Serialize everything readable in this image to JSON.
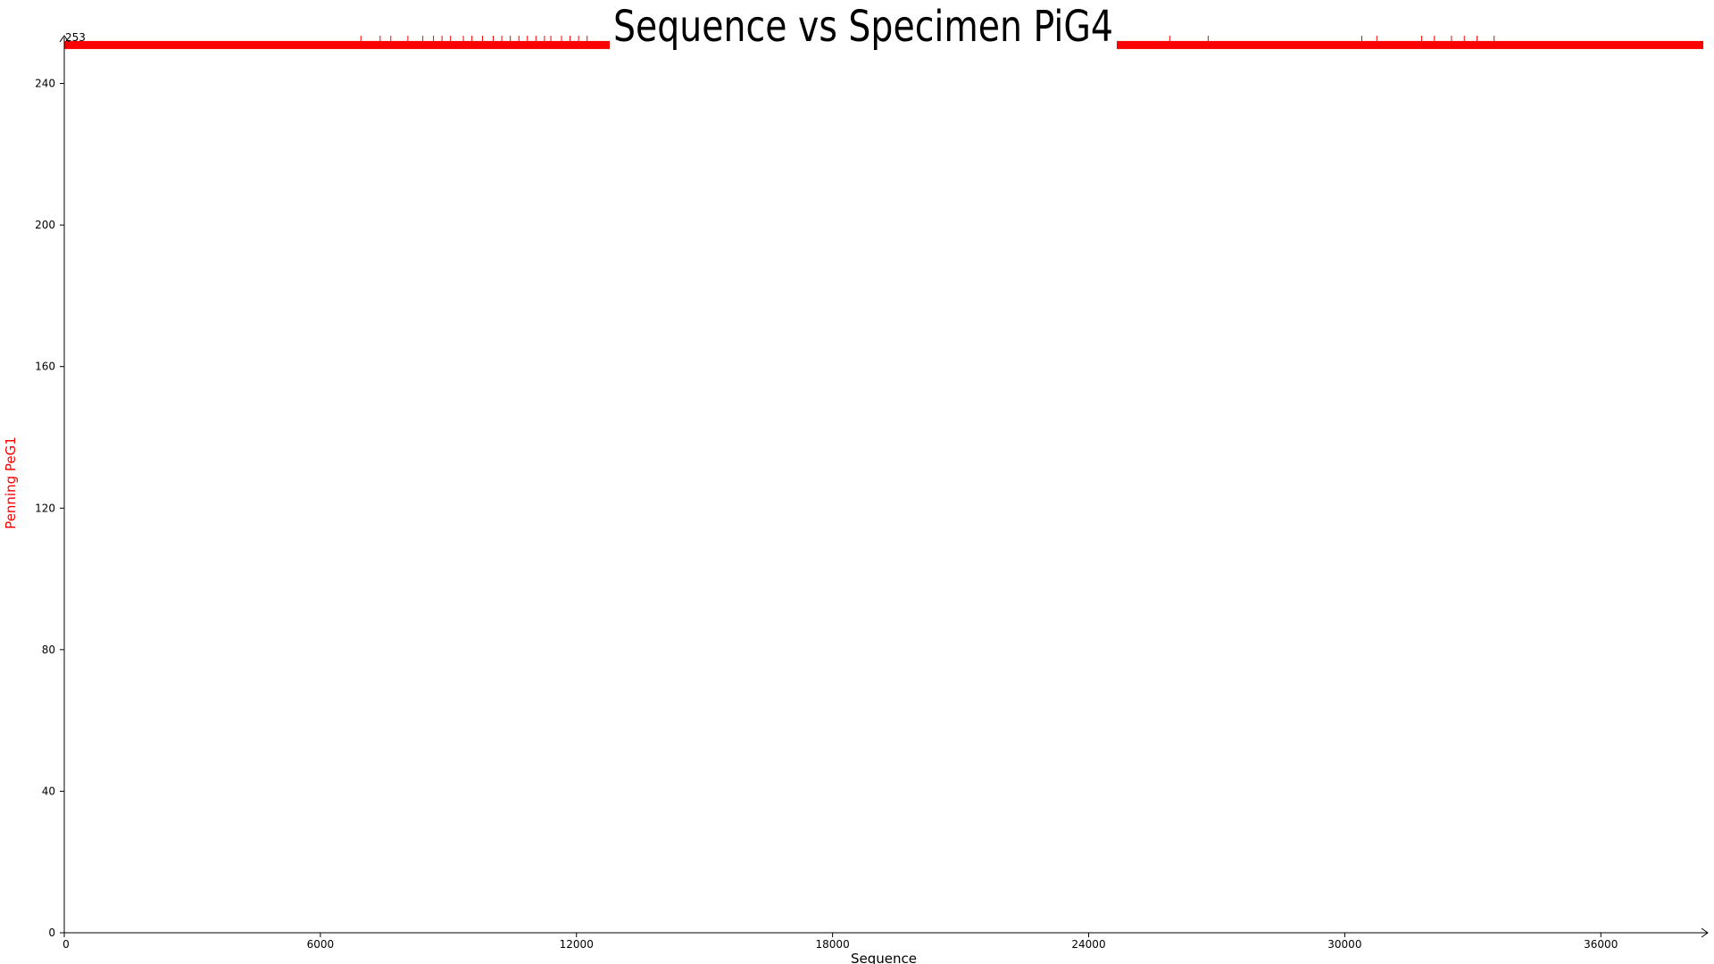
{
  "chart_data": {
    "type": "line",
    "title": "Sequence vs Specimen PiG4",
    "xlabel": "Sequence",
    "ylabel": "Penning PeG1",
    "xlim": [
      0,
      38400
    ],
    "ylim": [
      0,
      253
    ],
    "x_ticks": [
      0,
      6000,
      12000,
      18000,
      24000,
      30000,
      36000
    ],
    "y_ticks": [
      0,
      40,
      80,
      120,
      160,
      200,
      240
    ],
    "y_max_label": "253",
    "grid": false,
    "series": [
      {
        "color": "#ff0000",
        "baseline": 251,
        "max": 253,
        "x_start": 0,
        "x_end": 38400,
        "dense_segments": [
          [
            0,
            12800
          ],
          [
            24600,
            38400
          ]
        ],
        "sparse_segment": [
          12800,
          24600
        ],
        "spikes_x": [
          6950,
          7400,
          7650,
          8050,
          8400,
          8650,
          8850,
          9050,
          9350,
          9550,
          9800,
          10050,
          10250,
          10450,
          10650,
          10850,
          11050,
          11250,
          11400,
          11650,
          11850,
          12050,
          12250,
          25900,
          26800,
          30400,
          30750,
          31800,
          32100,
          32500,
          32800,
          33100,
          33500
        ]
      }
    ]
  },
  "colors": {
    "series": "#ff0000",
    "axis": "#000000",
    "ylabel": "#ff0000",
    "background": "#ffffff"
  }
}
